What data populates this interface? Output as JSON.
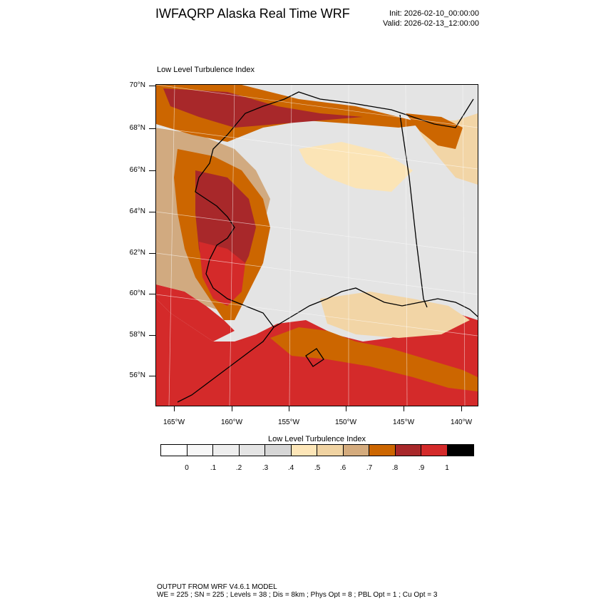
{
  "header": {
    "title": "IWFAQRP Alaska Real Time WRF",
    "init": "Init: 2026-02-10_00:00:00",
    "valid": "Valid: 2026-02-13_12:00:00"
  },
  "map": {
    "title": "Low Level Turbulence Index",
    "lat_labels": [
      "70°N",
      "68°N",
      "66°N",
      "64°N",
      "62°N",
      "60°N",
      "58°N",
      "56°N"
    ],
    "lon_labels": [
      "165°W",
      "160°W",
      "155°W",
      "150°W",
      "145°W",
      "140°W"
    ],
    "colors": {
      "frame": "#000000",
      "coast": "#000000",
      "ocean_high": "#d42a2a",
      "dark_red": "#a8282a",
      "orange": "#cc6600",
      "tan": "#d1aa80",
      "light_tan": "#f2d5a6",
      "pale": "#fbe4b6",
      "light_gray": "#e4e4e4",
      "white": "#f8f8f8"
    }
  },
  "colorbar": {
    "title": "Low Level Turbulence Index",
    "labels": [
      "0",
      ".1",
      ".2",
      ".3",
      ".4",
      ".5",
      ".6",
      ".7",
      ".8",
      ".9",
      "1"
    ],
    "colors": [
      "#ffffff",
      "#f7f7f7",
      "#eeeeee",
      "#e4e4e4",
      "#d6d6d6",
      "#fde6b8",
      "#f0d3a2",
      "#d4ab7d",
      "#cc6600",
      "#a8282a",
      "#d42a2a",
      "#000000"
    ]
  },
  "footer": {
    "line1": "OUTPUT FROM WRF V4.6.1 MODEL",
    "line2": "WE = 225 ; SN = 225 ; Levels = 38 ; Dis = 8km ; Phys Opt = 8 ; PBL Opt = 1 ; Cu Opt = 3"
  }
}
